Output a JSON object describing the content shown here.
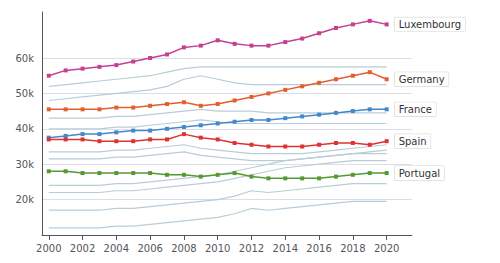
{
  "chart_data": {
    "type": "line",
    "x": [
      2000,
      2001,
      2002,
      2003,
      2004,
      2005,
      2006,
      2007,
      2008,
      2009,
      2010,
      2011,
      2012,
      2013,
      2014,
      2015,
      2016,
      2017,
      2018,
      2019,
      2020
    ],
    "series": [
      {
        "color": "#b8cdd8",
        "marker": "none",
        "values": [
          52000,
          52500,
          53000,
          53500,
          54000,
          54500,
          55000,
          56000,
          57000,
          57500,
          57500,
          57500,
          57500,
          57500,
          57500,
          57500,
          57500,
          57500,
          57500,
          57500,
          57500
        ]
      },
      {
        "color": "#b8cdd8",
        "marker": "none",
        "values": [
          48000,
          48500,
          49000,
          49500,
          50000,
          50500,
          51000,
          52000,
          54000,
          55000,
          54000,
          53000,
          52500,
          52500,
          52500,
          52500,
          52500,
          52500,
          52500,
          52500,
          52500
        ]
      },
      {
        "color": "#b8cdd8",
        "marker": "none",
        "values": [
          43000,
          43000,
          43000,
          43000,
          43500,
          43500,
          44000,
          44500,
          45000,
          45500,
          45000,
          45000,
          45000,
          44500,
          44500,
          44500,
          44500,
          44500,
          44500,
          44500,
          44500
        ]
      },
      {
        "color": "#b8cdd8",
        "marker": "none",
        "values": [
          40000,
          40000,
          40000,
          40000,
          40500,
          40500,
          41000,
          41500,
          42000,
          42500,
          42000,
          41500,
          41500,
          41500,
          41500,
          41500,
          41500,
          41500,
          41500,
          41500,
          41500
        ]
      },
      {
        "color": "#b8cdd8",
        "marker": "none",
        "values": [
          33500,
          33500,
          33500,
          33500,
          34000,
          34000,
          34500,
          35000,
          35500,
          34500,
          34000,
          33500,
          33000,
          33000,
          33000,
          33000,
          33500,
          34000,
          34500,
          35000,
          35500
        ]
      },
      {
        "color": "#b8cdd8",
        "marker": "none",
        "values": [
          31500,
          31500,
          31500,
          31500,
          32000,
          32000,
          32500,
          33000,
          33500,
          32500,
          32000,
          31500,
          31000,
          31000,
          31000,
          31500,
          32000,
          32500,
          33000,
          33500,
          34000
        ]
      },
      {
        "color": "#b8cdd8",
        "marker": "none",
        "values": [
          24000,
          24000,
          24000,
          24000,
          24500,
          24500,
          25000,
          25500,
          26000,
          26500,
          27000,
          28000,
          29000,
          30000,
          31000,
          31500,
          32000,
          32500,
          33000,
          33000,
          33000
        ]
      },
      {
        "color": "#b8cdd8",
        "marker": "none",
        "values": [
          22000,
          22000,
          22000,
          22000,
          22500,
          22500,
          23000,
          23500,
          24000,
          24500,
          25000,
          26000,
          27000,
          28000,
          29000,
          29500,
          30000,
          30500,
          31000,
          31000,
          31000
        ]
      },
      {
        "color": "#b8cdd8",
        "marker": "none",
        "values": [
          17000,
          17000,
          17000,
          17000,
          17500,
          17500,
          18000,
          18500,
          19000,
          19500,
          20000,
          21000,
          22500,
          22000,
          22500,
          23000,
          23500,
          24000,
          24500,
          24500,
          24500
        ]
      },
      {
        "color": "#b8cdd8",
        "marker": "none",
        "values": [
          12000,
          12000,
          12000,
          12000,
          12500,
          12500,
          13000,
          13500,
          14000,
          14500,
          15000,
          16000,
          17500,
          17000,
          17500,
          18000,
          18500,
          19000,
          19500,
          19500,
          19500
        ]
      },
      {
        "name": "Luxembourg",
        "color": "#c44090",
        "marker": "square",
        "values": [
          55000,
          56500,
          57000,
          57500,
          58000,
          59000,
          60000,
          61000,
          63000,
          63500,
          65000,
          64000,
          63500,
          63500,
          64500,
          65500,
          67000,
          68500,
          69500,
          70500,
          69500
        ]
      },
      {
        "name": "Germany",
        "color": "#e06030",
        "marker": "square",
        "values": [
          45500,
          45500,
          45500,
          45500,
          46000,
          46000,
          46500,
          47000,
          47500,
          46500,
          47000,
          48000,
          49000,
          50000,
          51000,
          52000,
          53000,
          54000,
          55000,
          56000,
          54000
        ]
      },
      {
        "name": "France",
        "color": "#4488cc",
        "marker": "square",
        "values": [
          37500,
          38000,
          38500,
          38500,
          39000,
          39500,
          39500,
          40000,
          40500,
          41000,
          41500,
          42000,
          42500,
          42500,
          43000,
          43500,
          44000,
          44500,
          45000,
          45500,
          45500
        ]
      },
      {
        "name": "Spain",
        "color": "#dd3333",
        "marker": "square",
        "values": [
          37000,
          37000,
          37000,
          36500,
          36500,
          36500,
          37000,
          37000,
          38500,
          37500,
          37000,
          36000,
          35500,
          35000,
          35000,
          35000,
          35500,
          36000,
          36000,
          35500,
          36500
        ]
      },
      {
        "name": "Portugal",
        "color": "#559933",
        "marker": "square",
        "values": [
          28000,
          28000,
          27500,
          27500,
          27500,
          27500,
          27500,
          27000,
          27000,
          26500,
          27000,
          27500,
          26500,
          26000,
          26000,
          26000,
          26000,
          26500,
          27000,
          27500,
          27500
        ]
      }
    ],
    "xlim": [
      1999.6,
      2021.5
    ],
    "xticks": [
      2000,
      2002,
      2004,
      2006,
      2008,
      2010,
      2012,
      2014,
      2016,
      2018,
      2020
    ],
    "ylim": [
      10000,
      73000
    ],
    "yticks": [
      {
        "value": 20000,
        "label": "20k"
      },
      {
        "value": 30000,
        "label": "30k"
      },
      {
        "value": 40000,
        "label": "40k"
      },
      {
        "value": 50000,
        "label": "50k"
      },
      {
        "value": 60000,
        "label": "60k"
      }
    ],
    "grid": true
  }
}
